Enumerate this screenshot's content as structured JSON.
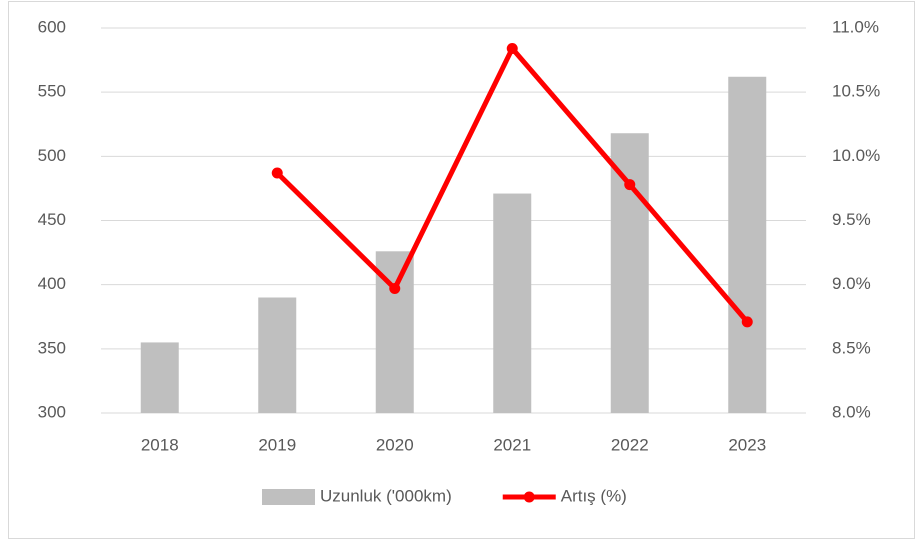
{
  "chart_data": {
    "type": "bar",
    "categories": [
      "2018",
      "2019",
      "2020",
      "2021",
      "2022",
      "2023"
    ],
    "series": [
      {
        "name": "Uzunluk ('000km)",
        "type": "bar",
        "color": "#bfbfbf",
        "values": [
          355,
          390,
          426,
          471,
          518,
          562
        ]
      },
      {
        "name": "Artış (%)",
        "type": "line",
        "axis": "y2",
        "color": "#ff0000",
        "values": [
          null,
          9.87,
          8.97,
          10.84,
          9.78,
          8.71
        ]
      }
    ],
    "ylim": [
      300,
      600
    ],
    "yticks": [
      300,
      350,
      400,
      450,
      500,
      550,
      600
    ],
    "y2lim": [
      8,
      11
    ],
    "y2ticks": [
      {
        "value": 8,
        "label": "8.0%"
      },
      {
        "value": 8.5,
        "label": "8.5%"
      },
      {
        "value": 9,
        "label": "9.0%"
      },
      {
        "value": 9.5,
        "label": "9.5%"
      },
      {
        "value": 10,
        "label": "10.0%"
      },
      {
        "value": 10.5,
        "label": "10.5%"
      },
      {
        "value": 11,
        "label": "11.0%"
      }
    ],
    "grid": true,
    "legend": "bottom"
  }
}
